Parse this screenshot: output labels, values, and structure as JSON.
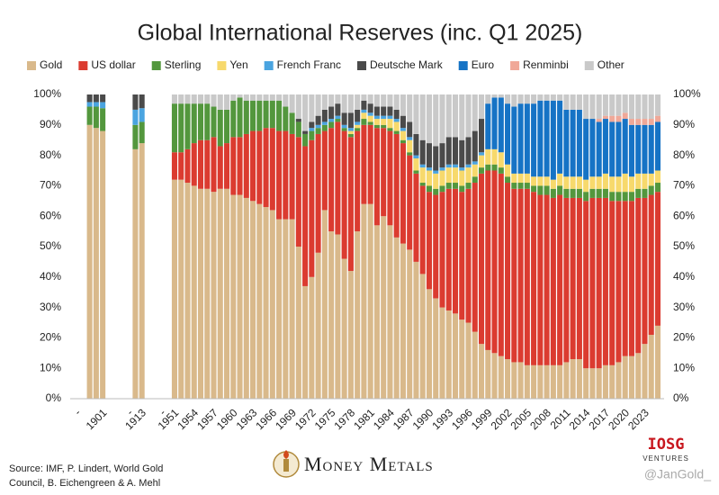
{
  "chart_data": {
    "type": "stacked_bar",
    "title": "Global International Reserves (inc. Q1 2025)",
    "source": [
      "Source: IMF, P. Lindert, World Gold",
      "Council, B. Eichengreen & A. Mehl"
    ],
    "branding": [
      "Money Metals",
      "IOSG",
      "VENTURES",
      "@JanGold_"
    ],
    "categories": [
      "-",
      null,
      null,
      null,
      "1901",
      null,
      null,
      null,
      "-",
      null,
      "1913",
      null,
      null,
      "-",
      null,
      "1951",
      null,
      null,
      "1954",
      null,
      null,
      "1957",
      null,
      null,
      "1960",
      null,
      null,
      "1963",
      null,
      null,
      "1966",
      null,
      null,
      "1969",
      null,
      null,
      "1972",
      null,
      null,
      "1975",
      null,
      null,
      "1978",
      null,
      null,
      "1981",
      null,
      null,
      "1984",
      null,
      null,
      "1987",
      null,
      null,
      "1990",
      null,
      null,
      "1993",
      null,
      null,
      "1996",
      null,
      null,
      "1999",
      null,
      null,
      "2002",
      null,
      null,
      "2005",
      null,
      null,
      "2008",
      null,
      null,
      "2011",
      null,
      null,
      "2014",
      null,
      null,
      "2017",
      null,
      null,
      "2020",
      null,
      null,
      "2023",
      null,
      null
    ],
    "series": [
      {
        "name": "Gold",
        "color": "#d9b98b",
        "values": [
          null,
          null,
          90,
          89,
          88,
          null,
          null,
          null,
          null,
          82,
          84,
          null,
          null,
          null,
          null,
          72,
          72,
          71,
          70,
          69,
          69,
          68,
          69,
          69,
          67,
          67,
          66,
          65,
          64,
          63,
          62,
          59,
          59,
          59,
          50,
          37,
          40,
          48,
          62,
          55,
          54,
          46,
          42,
          55,
          64,
          64,
          57,
          60,
          57,
          53,
          51,
          49,
          45,
          41,
          36,
          33,
          30,
          29,
          28,
          26,
          25,
          22,
          18,
          16,
          15,
          14,
          13,
          12,
          12,
          11,
          11,
          11,
          11,
          11,
          11,
          12,
          13,
          13,
          10,
          10,
          10,
          11,
          11,
          12,
          14,
          14,
          15,
          18,
          21,
          24
        ]
      },
      {
        "name": "US dollar",
        "color": "#db3b30",
        "values": [
          null,
          null,
          0,
          0,
          0,
          null,
          null,
          null,
          null,
          0,
          0,
          null,
          null,
          null,
          null,
          9,
          9,
          11,
          14,
          16,
          16,
          18,
          14,
          15,
          19,
          19,
          21,
          23,
          24,
          26,
          27,
          29,
          29,
          28,
          36,
          46,
          45,
          39,
          26,
          34,
          37,
          42,
          44,
          33,
          26,
          26,
          32,
          29,
          31,
          34,
          33,
          31,
          29,
          29,
          32,
          34,
          38,
          40,
          41,
          42,
          44,
          49,
          56,
          59,
          60,
          60,
          58,
          57,
          57,
          58,
          57,
          56,
          56,
          55,
          56,
          54,
          53,
          53,
          55,
          56,
          56,
          55,
          54,
          53,
          51,
          51,
          51,
          48,
          46,
          44
        ]
      },
      {
        "name": "Sterling",
        "color": "#53973d",
        "values": [
          null,
          null,
          6,
          7,
          7.5,
          null,
          null,
          null,
          null,
          8,
          7,
          null,
          null,
          null,
          null,
          16,
          16,
          15,
          13,
          12,
          12,
          10,
          12,
          11,
          12,
          13,
          11,
          10,
          10,
          9,
          9,
          10,
          8,
          7,
          5,
          4,
          3,
          2,
          2,
          2,
          1,
          1,
          1,
          1,
          2,
          1,
          1,
          1,
          1,
          1,
          1,
          1,
          1,
          1,
          2,
          2,
          2,
          2,
          2,
          2,
          2,
          2,
          2,
          2,
          2,
          2,
          2,
          2,
          2,
          2,
          2,
          3,
          3,
          3,
          3,
          3,
          3,
          3,
          3,
          3,
          3,
          3,
          3,
          3,
          3,
          3,
          3,
          3,
          3,
          3
        ]
      },
      {
        "name": "Yen",
        "color": "#f7d96c",
        "values": [
          null,
          null,
          0,
          0,
          0,
          null,
          null,
          null,
          null,
          0,
          0,
          null,
          null,
          null,
          null,
          0,
          0,
          0,
          0,
          0,
          0,
          0,
          0,
          0,
          0,
          0,
          0,
          0,
          0,
          0,
          0,
          0,
          0,
          0,
          0,
          0,
          0,
          0,
          0,
          0,
          0,
          0,
          1,
          1,
          2,
          2,
          2,
          2,
          3,
          3,
          3,
          4,
          4,
          5,
          5,
          5,
          5,
          5,
          5,
          5,
          5,
          4,
          4,
          5,
          5,
          5,
          4,
          3,
          3,
          3,
          3,
          3,
          3,
          3,
          4,
          4,
          4,
          4,
          4,
          4,
          4,
          5,
          5,
          5,
          6,
          5,
          5,
          5,
          4,
          4
        ]
      },
      {
        "name": "French Franc",
        "color": "#4aa4e0",
        "values": [
          null,
          null,
          1.5,
          1.5,
          2,
          null,
          null,
          null,
          null,
          5,
          4.5,
          null,
          null,
          null,
          null,
          0,
          0,
          0,
          0,
          0,
          0,
          0,
          0,
          0,
          0,
          0,
          0,
          0,
          0,
          0,
          0,
          0,
          0,
          0,
          0,
          0,
          1,
          1,
          1,
          1,
          1,
          1,
          1,
          1,
          1,
          1,
          1,
          1,
          1,
          1,
          1,
          1,
          1,
          1,
          1,
          1,
          1,
          1,
          1,
          1,
          1,
          1,
          1,
          0,
          0,
          0,
          0,
          0,
          0,
          0,
          0,
          0,
          0,
          0,
          0,
          0,
          0,
          0,
          0,
          0,
          0,
          0,
          0,
          0,
          0,
          0,
          0,
          0,
          0,
          0
        ]
      },
      {
        "name": "Deutsche Mark",
        "color": "#4a4a4a",
        "values": [
          null,
          null,
          2.5,
          2.5,
          2.5,
          null,
          null,
          null,
          null,
          5,
          4.5,
          null,
          null,
          null,
          null,
          0,
          0,
          0,
          0,
          0,
          0,
          0,
          0,
          0,
          0,
          0,
          0,
          0,
          0,
          0,
          0,
          0,
          0,
          0,
          1,
          1,
          2,
          3,
          4,
          4,
          4,
          4,
          5,
          4,
          3,
          3,
          3,
          3,
          3,
          3,
          4,
          5,
          7,
          8,
          8,
          8,
          8,
          9,
          9,
          9,
          9,
          10,
          11,
          0,
          0,
          0,
          0,
          0,
          0,
          0,
          0,
          0,
          0,
          0,
          0,
          0,
          0,
          0,
          0,
          0,
          0,
          0,
          0,
          0,
          0,
          0,
          0,
          0,
          0,
          0
        ]
      },
      {
        "name": "Euro",
        "color": "#1673c5",
        "values": [
          null,
          null,
          0,
          0,
          0,
          null,
          null,
          null,
          null,
          0,
          0,
          null,
          null,
          null,
          null,
          0,
          0,
          0,
          0,
          0,
          0,
          0,
          0,
          0,
          0,
          0,
          0,
          0,
          0,
          0,
          0,
          0,
          0,
          0,
          0,
          0,
          0,
          0,
          0,
          0,
          0,
          0,
          0,
          0,
          0,
          0,
          0,
          0,
          0,
          0,
          0,
          0,
          0,
          0,
          0,
          0,
          0,
          0,
          0,
          0,
          0,
          0,
          0,
          15,
          17,
          18,
          20,
          22,
          23,
          23,
          24,
          25,
          25,
          26,
          24,
          22,
          22,
          22,
          20,
          19,
          18,
          18,
          18,
          18,
          18,
          17,
          16,
          16,
          16,
          16
        ]
      },
      {
        "name": "Renminbi",
        "color": "#f0a898",
        "values": [
          null,
          null,
          0,
          0,
          0,
          null,
          null,
          null,
          null,
          0,
          0,
          null,
          null,
          null,
          null,
          0,
          0,
          0,
          0,
          0,
          0,
          0,
          0,
          0,
          0,
          0,
          0,
          0,
          0,
          0,
          0,
          0,
          0,
          0,
          0,
          0,
          0,
          0,
          0,
          0,
          0,
          0,
          0,
          0,
          0,
          0,
          0,
          0,
          0,
          0,
          0,
          0,
          0,
          0,
          0,
          0,
          0,
          0,
          0,
          0,
          0,
          0,
          0,
          0,
          0,
          0,
          0,
          0,
          0,
          0,
          0,
          0,
          0,
          0,
          0,
          0,
          0,
          0,
          0,
          0,
          1,
          1,
          2,
          2,
          2,
          2,
          2,
          2,
          2,
          2
        ]
      },
      {
        "name": "Other",
        "color": "#c9c9c9",
        "values": [
          null,
          null,
          0,
          0,
          0,
          null,
          null,
          null,
          null,
          0,
          0,
          null,
          null,
          null,
          null,
          3,
          3,
          3,
          3,
          3,
          3,
          4,
          5,
          5,
          2,
          1,
          2,
          2,
          2,
          2,
          2,
          2,
          4,
          6,
          8,
          12,
          9,
          7,
          5,
          4,
          3,
          6,
          6,
          5,
          2,
          3,
          4,
          4,
          4,
          5,
          7,
          9,
          13,
          15,
          16,
          17,
          16,
          14,
          14,
          15,
          14,
          12,
          8,
          3,
          1,
          1,
          3,
          4,
          3,
          3,
          3,
          2,
          2,
          2,
          2,
          5,
          5,
          5,
          8,
          8,
          8,
          7,
          7,
          7,
          6,
          8,
          8,
          8,
          8,
          7
        ]
      }
    ],
    "ylim": [
      0,
      100
    ],
    "yticks": [
      {
        "value": 0,
        "label": "0%"
      },
      {
        "value": 10,
        "label": "10%"
      },
      {
        "value": 20,
        "label": "20%"
      },
      {
        "value": 30,
        "label": "30%"
      },
      {
        "value": 40,
        "label": "40%"
      },
      {
        "value": 50,
        "label": "50%"
      },
      {
        "value": 60,
        "label": "60%"
      },
      {
        "value": 70,
        "label": "70%"
      },
      {
        "value": 80,
        "label": "80%"
      },
      {
        "value": 90,
        "label": "90%"
      },
      {
        "value": 100,
        "label": "100%"
      }
    ],
    "y2lim": [
      0,
      100
    ],
    "y2ticks": [
      {
        "value": 0,
        "label": "0%"
      },
      {
        "value": 10,
        "label": "10%"
      },
      {
        "value": 20,
        "label": "20%"
      },
      {
        "value": 30,
        "label": "30%"
      },
      {
        "value": 40,
        "label": "40%"
      },
      {
        "value": 50,
        "label": "50%"
      },
      {
        "value": 60,
        "label": "60%"
      },
      {
        "value": 70,
        "label": "70%"
      },
      {
        "value": 80,
        "label": "80%"
      },
      {
        "value": 90,
        "label": "90%"
      },
      {
        "value": 100,
        "label": "100%"
      }
    ],
    "legend": "top",
    "grid": false
  }
}
